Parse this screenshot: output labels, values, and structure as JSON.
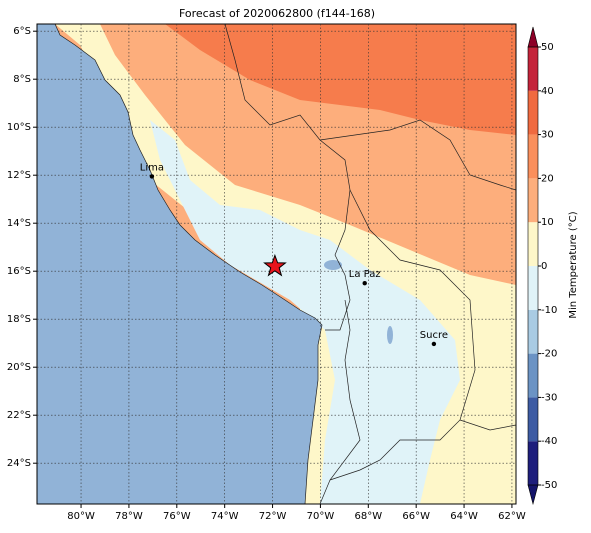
{
  "chart_data": {
    "type": "map",
    "title": "Forecast of 2020062800 (f144-168)",
    "xlim": [
      -81.84,
      -61.83
    ],
    "ylim": [
      -25.7,
      -5.7
    ],
    "xticks": [
      {
        "value": -80,
        "label": "80°W"
      },
      {
        "value": -78,
        "label": "78°W"
      },
      {
        "value": -76,
        "label": "76°W"
      },
      {
        "value": -74,
        "label": "74°W"
      },
      {
        "value": -72,
        "label": "72°W"
      },
      {
        "value": -70,
        "label": "70°W"
      },
      {
        "value": -68,
        "label": "68°W"
      },
      {
        "value": -66,
        "label": "66°W"
      },
      {
        "value": -64,
        "label": "64°W"
      },
      {
        "value": -62,
        "label": "62°W"
      }
    ],
    "yticks": [
      {
        "value": -6,
        "label": "6°S"
      },
      {
        "value": -8,
        "label": "8°S"
      },
      {
        "value": -10,
        "label": "10°S"
      },
      {
        "value": -12,
        "label": "12°S"
      },
      {
        "value": -14,
        "label": "14°S"
      },
      {
        "value": -16,
        "label": "16°S"
      },
      {
        "value": -18,
        "label": "18°S"
      },
      {
        "value": -20,
        "label": "20°S"
      },
      {
        "value": -22,
        "label": "22°S"
      },
      {
        "value": -24,
        "label": "24°S"
      }
    ],
    "grid": true,
    "cities": [
      {
        "name": "Lima",
        "lon": -77.04,
        "lat": -12.05
      },
      {
        "name": "La Paz",
        "lon": -68.15,
        "lat": -16.5
      },
      {
        "name": "Sucre",
        "lon": -65.26,
        "lat": -19.03
      }
    ],
    "forecast_point": {
      "lon": -71.9,
      "lat": -15.8,
      "color": "#e8141c"
    },
    "colorbar": {
      "label": "Min Temperature (°C)",
      "ticks": [
        -50,
        -40,
        -30,
        -20,
        -10,
        0,
        10,
        20,
        30,
        40,
        50
      ],
      "colors": [
        "#1e1e7c",
        "#3d5ba3",
        "#6b93c4",
        "#a9cbe3",
        "#e0f3f8",
        "#fef7c9",
        "#fdae7c",
        "#fa8f5c",
        "#f06a40",
        "#c4243a"
      ],
      "extend_colors": [
        "#14146a",
        "#8c0027"
      ]
    }
  }
}
